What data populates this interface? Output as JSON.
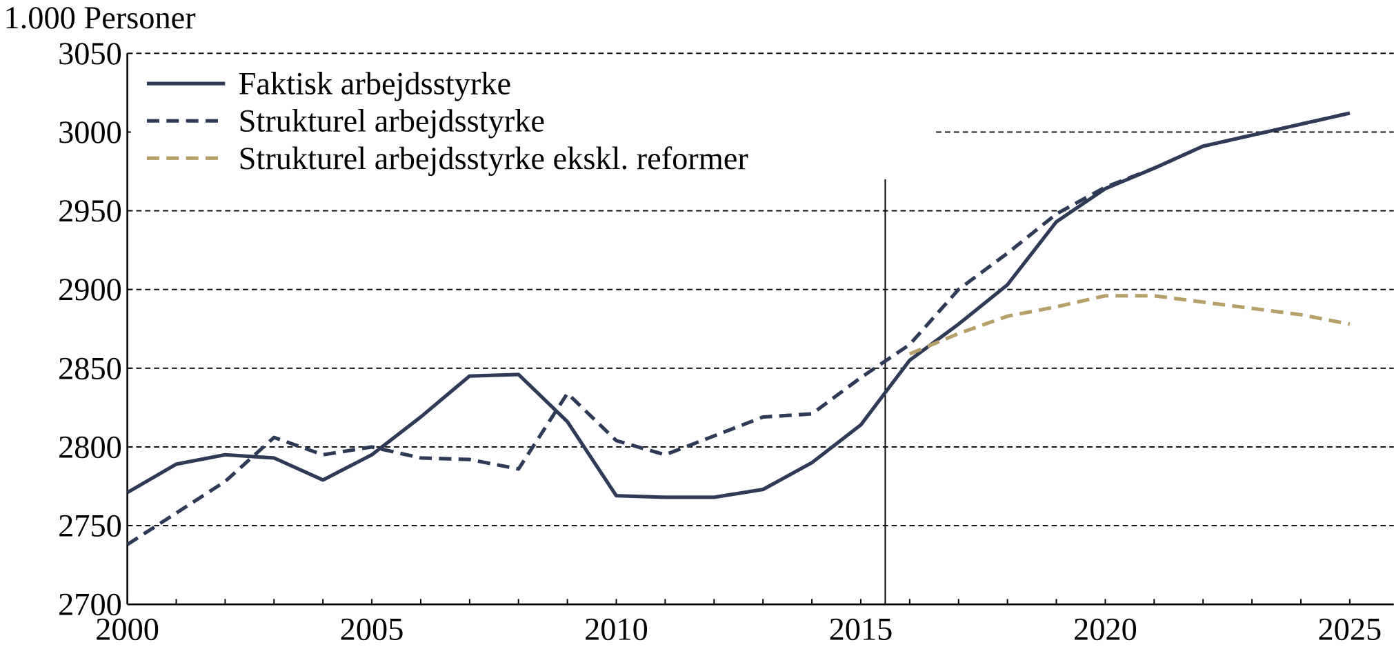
{
  "chart_data": {
    "type": "line",
    "title": "1.000 Personer",
    "x": [
      2000,
      2001,
      2002,
      2003,
      2004,
      2005,
      2006,
      2007,
      2008,
      2009,
      2010,
      2011,
      2012,
      2013,
      2014,
      2015,
      2016,
      2017,
      2018,
      2019,
      2020,
      2021,
      2022,
      2023,
      2024,
      2025
    ],
    "series": [
      {
        "name": "Faktisk arbejdsstyrke",
        "color": "#2e3a56",
        "dash": "solid",
        "values": [
          2771,
          2789,
          2795,
          2793,
          2779,
          2795,
          2819,
          2845,
          2846,
          2816,
          2769,
          2768,
          2768,
          2773,
          2790,
          2814,
          2855,
          2878,
          2903,
          2943,
          2964,
          2977,
          2991,
          2998,
          3005,
          3012
        ]
      },
      {
        "name": "Strukturel arbejdsstyrke",
        "color": "#2e3a56",
        "dash": "dashed",
        "values": [
          2738,
          2758,
          2778,
          2806,
          2795,
          2800,
          2793,
          2792,
          2786,
          2834,
          2804,
          2795,
          2807,
          2819,
          2821,
          2844,
          2865,
          2900,
          2923,
          2948,
          2965,
          2977,
          2991,
          2998,
          3005,
          3012
        ]
      },
      {
        "name": "Strukturel arbejdsstyrke ekskl. reformer",
        "color": "#b5a06a",
        "dash": "dashed",
        "values": [
          null,
          null,
          null,
          null,
          null,
          null,
          null,
          null,
          null,
          null,
          null,
          null,
          null,
          null,
          null,
          null,
          2859,
          2872,
          2883,
          2889,
          2896,
          2896,
          2892,
          2888,
          2884,
          2878
        ]
      }
    ],
    "forecast_start": 2015.5,
    "xlim": [
      2000,
      2025.9
    ],
    "xticks": [
      2000,
      2005,
      2010,
      2015,
      2020,
      2025
    ],
    "ylim": [
      2700,
      3050
    ],
    "yticks": [
      2700,
      2750,
      2800,
      2850,
      2900,
      2950,
      3000,
      3050
    ],
    "grid": true,
    "legend": "upper left"
  }
}
